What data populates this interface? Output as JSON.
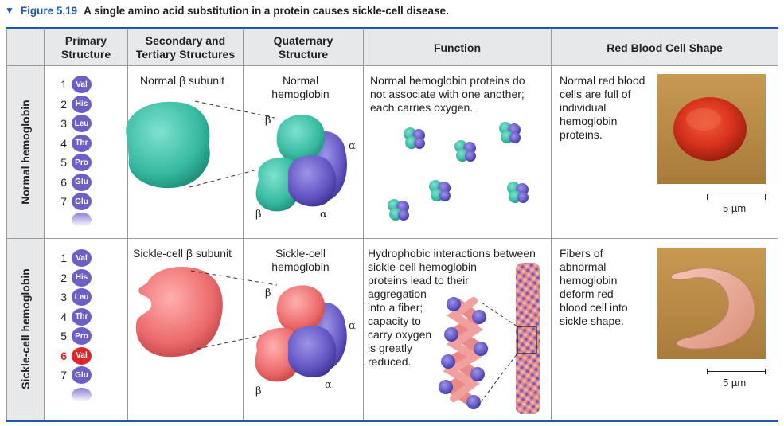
{
  "figure": {
    "label": "Figure 5.19",
    "caption": "A single amino acid substitution in a protein causes sickle-cell disease."
  },
  "headers": {
    "primary": "Primary\nStructure",
    "secondary": "Secondary and\nTertiary Structures",
    "quaternary": "Quaternary\nStructure",
    "function": "Function",
    "shape": "Red Blood Cell Shape"
  },
  "rows": {
    "normal": {
      "label": "Normal hemoglobin",
      "sequence": [
        {
          "num": "1",
          "aa": "Val"
        },
        {
          "num": "2",
          "aa": "His"
        },
        {
          "num": "3",
          "aa": "Leu"
        },
        {
          "num": "4",
          "aa": "Thr"
        },
        {
          "num": "5",
          "aa": "Pro"
        },
        {
          "num": "6",
          "aa": "Glu"
        },
        {
          "num": "7",
          "aa": "Glu"
        }
      ],
      "subunit_label": "Normal β subunit",
      "quaternary_label": "Normal\nhemoglobin",
      "function_text": "Normal hemoglobin proteins do\nnot associate with one another;\neach carries oxygen.",
      "shape_text": "Normal red blood\ncells are full of\nindividual\nhemoglobin\nproteins.",
      "scale": "5 µm"
    },
    "sickle": {
      "label": "Sickle-cell hemoglobin",
      "sequence": [
        {
          "num": "1",
          "aa": "Val"
        },
        {
          "num": "2",
          "aa": "His"
        },
        {
          "num": "3",
          "aa": "Leu"
        },
        {
          "num": "4",
          "aa": "Thr"
        },
        {
          "num": "5",
          "aa": "Pro"
        },
        {
          "num": "6",
          "aa": "Val"
        },
        {
          "num": "7",
          "aa": "Glu"
        }
      ],
      "mutated_position": "6",
      "subunit_label": "Sickle-cell β subunit",
      "quaternary_label": "Sickle-cell\nhemoglobin",
      "function_text": "Hydrophobic interactions between\nsickle-cell hemoglobin\nproteins lead to their\naggregation\ninto a fiber;\ncapacity to\ncarry oxygen\nis greatly\nreduced.",
      "shape_text": "Fibers of\nabnormal\nhemoglobin\ndeform red\nblood cell into\nsickle shape.",
      "scale": "5 µm"
    }
  },
  "symbols": {
    "alpha": "α",
    "beta": "β"
  },
  "colors": {
    "accent_blue": "#1f5aa6",
    "normal_subunit": "#3bbfa6",
    "sickle_subunit": "#ea6b6e",
    "alpha_subunit": "#6c5fc7",
    "mutation_red": "#e0262d",
    "header_gray": "#e7e8e9"
  }
}
